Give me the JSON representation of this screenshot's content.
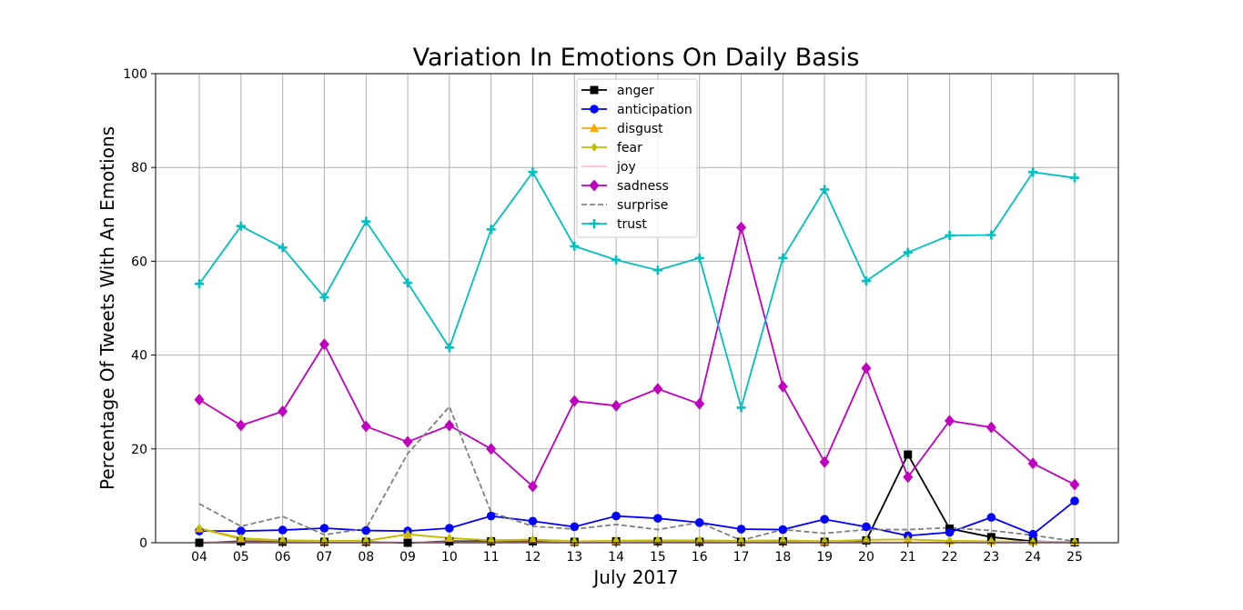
{
  "chart_data": {
    "type": "line",
    "title": "Variation In Emotions On Daily Basis",
    "xlabel": "July 2017",
    "ylabel": "Percentage Of Tweets With An Emotions",
    "categories": [
      "04",
      "05",
      "06",
      "07",
      "08",
      "09",
      "10",
      "11",
      "12",
      "13",
      "14",
      "15",
      "16",
      "17",
      "18",
      "19",
      "20",
      "21",
      "22",
      "23",
      "24",
      "25"
    ],
    "ylim": [
      0,
      100
    ],
    "yticks": [
      0,
      20,
      40,
      60,
      80,
      100
    ],
    "grid": true,
    "legend_position": "top-center",
    "series": [
      {
        "name": "anger",
        "color": "#000000",
        "marker": "square",
        "dash": "solid",
        "values": [
          0,
          0.3,
          0.2,
          0.2,
          0.2,
          0,
          0.3,
          0.3,
          0.3,
          0.2,
          0.3,
          0.3,
          0.2,
          0.2,
          0.3,
          0.2,
          0.5,
          18.8,
          3,
          1.2,
          0.3,
          0.1
        ]
      },
      {
        "name": "anticipation",
        "color": "#0000ff",
        "marker": "circle",
        "dash": "solid",
        "values": [
          2.5,
          2.5,
          2.7,
          3.1,
          2.6,
          2.5,
          3.1,
          5.7,
          4.6,
          3.4,
          5.7,
          5.2,
          4.3,
          2.9,
          2.8,
          5,
          3.4,
          1.5,
          2.2,
          5.4,
          1.8,
          8.9
        ]
      },
      {
        "name": "disgust",
        "color": "#ffa500",
        "marker": "triangle",
        "dash": "solid",
        "values": [
          3,
          0.8,
          0.5,
          0.4,
          0.4,
          1.8,
          1,
          0.5,
          0.6,
          0.3,
          0.4,
          0.5,
          0.5,
          0.4,
          0.5,
          0.3,
          0.6,
          0.7,
          0.4,
          0.3,
          0.2,
          0.2
        ]
      },
      {
        "name": "fear",
        "color": "#bfbf00",
        "marker": "diamond-small",
        "dash": "solid",
        "values": [
          3.1,
          1,
          0.5,
          0.4,
          0.4,
          1.8,
          1,
          0.5,
          0.7,
          0.3,
          0.4,
          0.5,
          0.5,
          0.4,
          0.5,
          0.3,
          0.6,
          0.7,
          0.4,
          0.3,
          0.2,
          0.2
        ]
      },
      {
        "name": "joy",
        "color": "#ffc0cb",
        "marker": "none",
        "dash": "solid",
        "values": [
          0.1,
          0.1,
          0.1,
          0.1,
          0.1,
          0.1,
          0.1,
          0.1,
          0.1,
          0.1,
          0.1,
          0.1,
          0.1,
          0.1,
          0.1,
          0.1,
          0.1,
          0.1,
          0.1,
          0.1,
          0.1,
          0.1
        ]
      },
      {
        "name": "sadness",
        "color": "#bf00bf",
        "marker": "diamond",
        "dash": "solid",
        "values": [
          30.5,
          25,
          28,
          42.3,
          24.8,
          21.5,
          25,
          20,
          12,
          30.2,
          29.2,
          32.8,
          29.6,
          67.2,
          33.3,
          17.2,
          37.2,
          14,
          26,
          24.6,
          16.9,
          12.4
        ]
      },
      {
        "name": "surprise",
        "color": "#808080",
        "marker": "none",
        "dash": "dashed",
        "values": [
          8.3,
          3.5,
          5.6,
          1.7,
          3,
          19,
          29,
          6.5,
          3.5,
          2.9,
          3.9,
          2.8,
          4.3,
          0.5,
          2.8,
          2,
          2.8,
          2.8,
          3.2,
          2.6,
          1.6,
          0.3
        ]
      },
      {
        "name": "trust",
        "color": "#00bfbf",
        "marker": "plus",
        "dash": "solid",
        "values": [
          55.2,
          67.5,
          62.9,
          52.3,
          68.5,
          55.4,
          41.6,
          66.8,
          79,
          63.2,
          60.3,
          58.1,
          60.7,
          28.8,
          60.7,
          75.3,
          55.8,
          61.9,
          65.5,
          65.6,
          79,
          77.8
        ]
      }
    ]
  }
}
